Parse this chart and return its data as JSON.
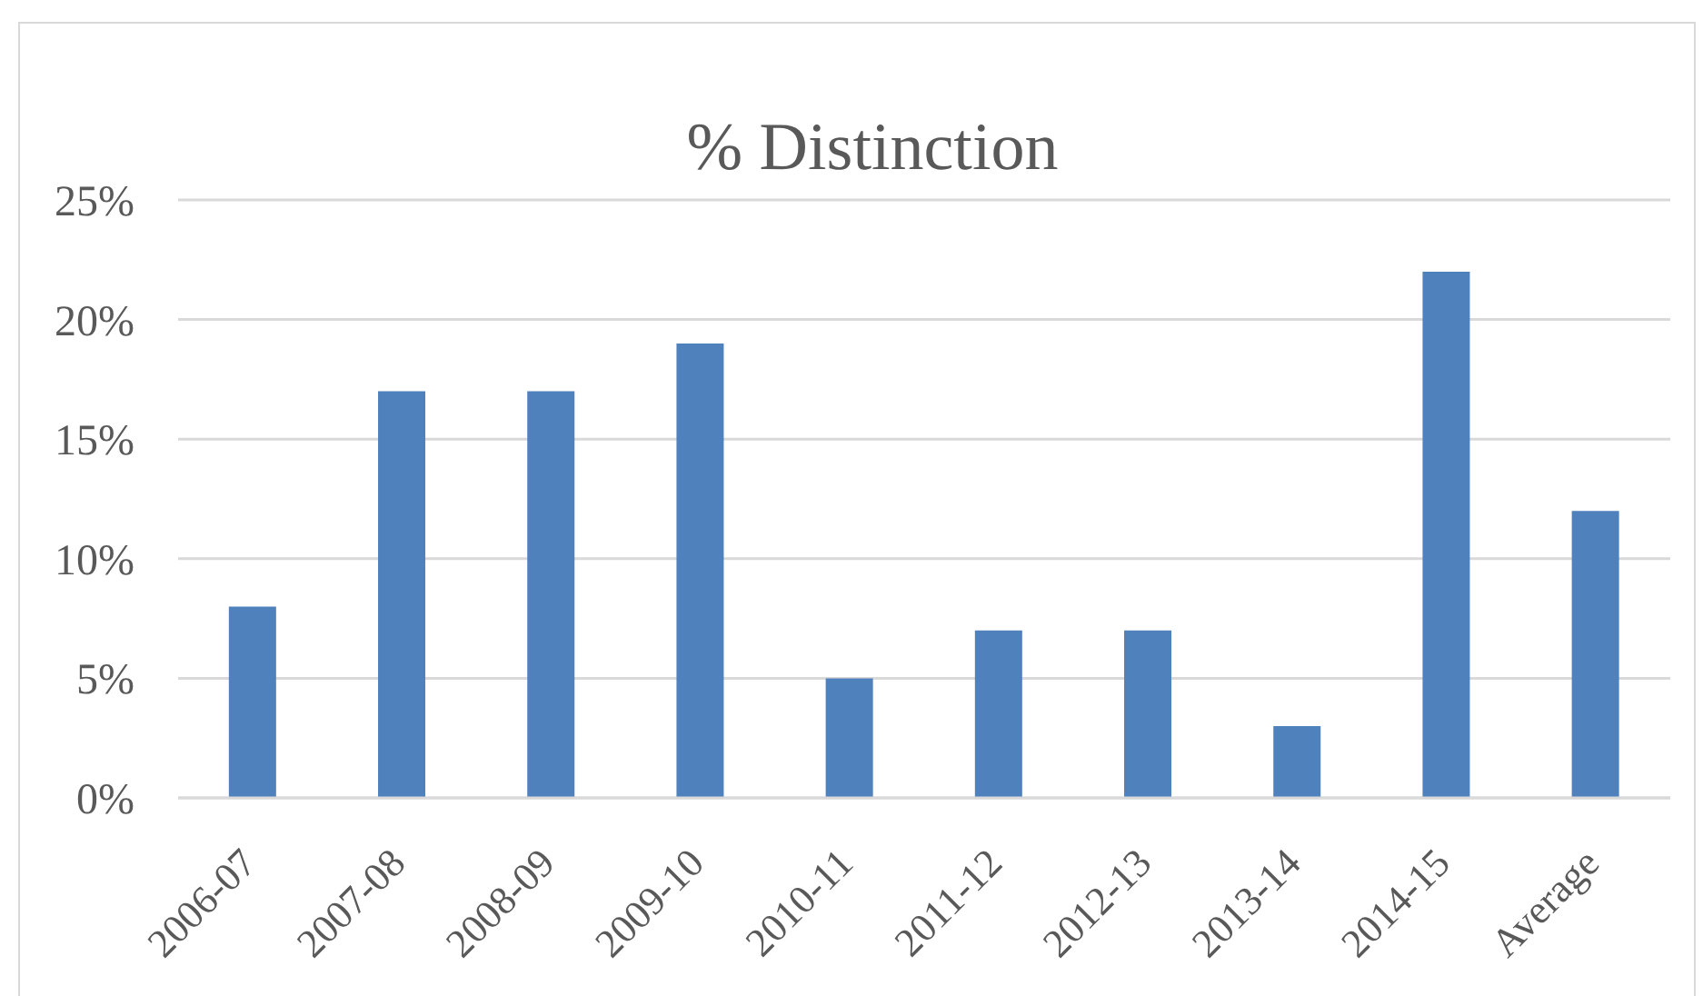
{
  "chart_data": {
    "type": "bar",
    "title": "% Distinction",
    "categories": [
      "2006-07",
      "2007-08",
      "2008-09",
      "2009-10",
      "2010-11",
      "2011-12",
      "2012-13",
      "2013-14",
      "2014-15",
      "Average"
    ],
    "values": [
      8,
      17,
      17,
      19,
      5,
      7,
      7,
      3,
      22,
      12
    ],
    "color": "#4f81bd",
    "ylim": [
      0,
      25
    ],
    "yticks": [
      {
        "value": 0,
        "label": "0%"
      },
      {
        "value": 5,
        "label": "5%"
      },
      {
        "value": 10,
        "label": "10%"
      },
      {
        "value": 15,
        "label": "15%"
      },
      {
        "value": 20,
        "label": "20%"
      },
      {
        "value": 25,
        "label": "25%"
      }
    ],
    "grid": "y"
  }
}
